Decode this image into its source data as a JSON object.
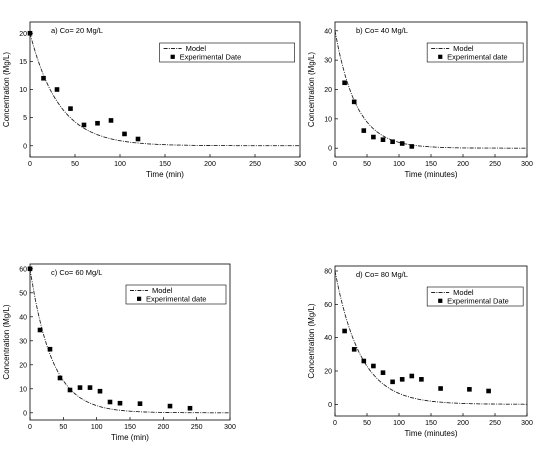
{
  "chart_data": [
    {
      "type": "scatter",
      "panel_label": "a) Co= 20 Mg/L",
      "xlabel": "Time (min)",
      "ylabel": "Concentration (Mg/L)",
      "xlim": [
        0,
        300
      ],
      "ylim": [
        -2,
        22
      ],
      "xticks": [
        0,
        50,
        100,
        150,
        200,
        250,
        300
      ],
      "yticks": [
        0,
        5,
        10,
        15,
        20
      ],
      "legend": {
        "model": "Model",
        "experimental": "Experimental Date"
      },
      "model": {
        "c0": 20,
        "k": 0.031
      },
      "experimental": {
        "x": [
          0,
          15,
          30,
          45,
          60,
          75,
          90,
          105,
          120
        ],
        "y": [
          20,
          12.0,
          10.0,
          6.6,
          3.7,
          4.0,
          4.5,
          2.1,
          1.2
        ]
      }
    },
    {
      "type": "scatter",
      "panel_label": "b) Co= 40 Mg/L",
      "xlabel": "Time (minutes)",
      "ylabel": "Concentration (Mg/L)",
      "xlim": [
        0,
        300
      ],
      "ylim": [
        -3,
        43
      ],
      "xticks": [
        0,
        50,
        100,
        150,
        200,
        250,
        300
      ],
      "yticks": [
        0,
        10,
        20,
        30,
        40
      ],
      "legend": {
        "model": "Model",
        "experimental": "Experimental date"
      },
      "model": {
        "c0": 40,
        "k": 0.03
      },
      "experimental": {
        "x": [
          15,
          30,
          45,
          60,
          75,
          90,
          105,
          120
        ],
        "y": [
          22.3,
          15.8,
          6.0,
          3.8,
          2.9,
          2.2,
          1.6,
          0.6
        ]
      }
    },
    {
      "type": "scatter",
      "panel_label": "c) Co= 60 Mg/L",
      "xlabel": "Time (min)",
      "ylabel": "Concentration (Mg/L)",
      "xlim": [
        0,
        300
      ],
      "ylim": [
        -3,
        62
      ],
      "xticks": [
        0,
        50,
        100,
        150,
        200,
        250,
        300
      ],
      "yticks": [
        0,
        10,
        20,
        30,
        40,
        50,
        60
      ],
      "legend": {
        "model": "Model",
        "experimental": "Experimental date"
      },
      "model": {
        "c0": 60,
        "k": 0.03
      },
      "experimental": {
        "x": [
          0,
          15,
          30,
          45,
          60,
          75,
          90,
          105,
          120,
          135,
          165,
          210,
          240
        ],
        "y": [
          60,
          34.5,
          26.5,
          14.5,
          9.5,
          10.5,
          10.5,
          9.0,
          4.5,
          4.0,
          3.8,
          2.8,
          1.9
        ]
      }
    },
    {
      "type": "scatter",
      "panel_label": "d) Co= 80 Mg/L",
      "xlabel": "Time (minutes)",
      "ylabel": "Concentration (Mg/L)",
      "xlim": [
        0,
        300
      ],
      "ylim": [
        -7,
        83
      ],
      "xticks": [
        0,
        50,
        100,
        150,
        200,
        250,
        300
      ],
      "yticks": [
        0,
        20,
        40,
        60,
        80
      ],
      "legend": {
        "model": "Model",
        "experimental": "Experimental Date"
      },
      "model": {
        "c0": 80,
        "k": 0.025
      },
      "experimental": {
        "x": [
          15,
          30,
          45,
          60,
          75,
          90,
          105,
          120,
          135,
          165,
          210,
          240
        ],
        "y": [
          44,
          33,
          26,
          23,
          19,
          13.5,
          15,
          17,
          15,
          9.5,
          9,
          8
        ]
      }
    }
  ]
}
